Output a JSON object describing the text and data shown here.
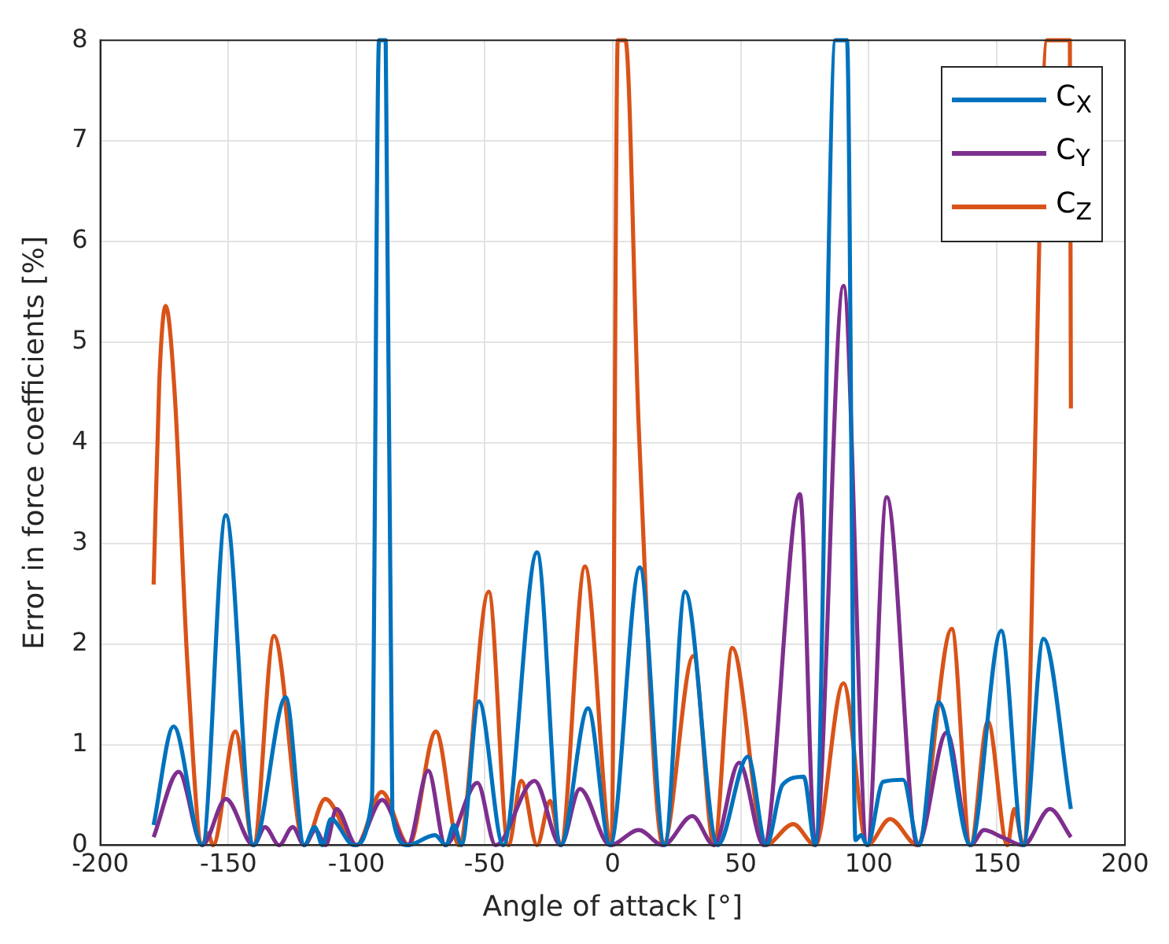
{
  "chart_data": {
    "type": "line",
    "xlabel": "Angle of attack [°]",
    "ylabel": "Error in force coefficients [%]",
    "xlim": [
      -200,
      200
    ],
    "xticks": [
      -200,
      -150,
      -100,
      -50,
      0,
      50,
      100,
      150,
      200
    ],
    "ylim": [
      0,
      8
    ],
    "yticks": [
      0,
      1,
      2,
      3,
      4,
      5,
      6,
      7,
      8
    ],
    "grid": true,
    "legend": "top right",
    "marker": "none",
    "line_style": "solid",
    "series": [
      {
        "name": "C$_{X}$",
        "color": "#0072bd",
        "x": [
          -179.2,
          -171.4,
          -160.2,
          -151,
          -140.2,
          -127.6,
          -120.4,
          -116.3,
          -113.3,
          -110,
          -101,
          -94,
          -91.2,
          -88.6,
          -86,
          -80,
          -69.4,
          -65,
          -62,
          -59,
          -52.2,
          -42.7,
          -29.5,
          -20.3,
          -9.6,
          -1,
          10.6,
          20.3,
          28.3,
          41,
          52.8,
          60,
          66.3,
          74.6,
          79.1,
          87,
          91.5,
          94.8,
          97,
          99.4,
          105.6,
          113.4,
          119.6,
          127.3,
          139.7,
          151.7,
          160.3,
          168.2,
          178.9
        ],
        "values": [
          0.2,
          1.18,
          0,
          3.28,
          0,
          1.47,
          0,
          0.18,
          0,
          0.26,
          0,
          0.45,
          8,
          8,
          0.3,
          0,
          0.1,
          0,
          0.2,
          0,
          1.43,
          0,
          2.91,
          0,
          1.36,
          0,
          2.76,
          0,
          2.52,
          0,
          0.88,
          0,
          0.6,
          0.68,
          0,
          8,
          8,
          0.05,
          0.1,
          0,
          0.63,
          0.65,
          0,
          1.42,
          0,
          2.13,
          0,
          2.05,
          0.36
        ]
      },
      {
        "name": "C$_{Y}$",
        "color": "#7e2f8e",
        "x": [
          -179.2,
          -169.4,
          -160.2,
          -151,
          -140.2,
          -135.7,
          -130.2,
          -124.9,
          -120.4,
          -116,
          -112,
          -107.8,
          -100,
          -90,
          -80,
          -72,
          -65.3,
          -52.8,
          -45.7,
          -30.5,
          -20.3,
          -12.8,
          -1,
          10.2,
          19.7,
          31.1,
          39.6,
          49.4,
          59,
          73.1,
          79.1,
          90.1,
          99.4,
          107,
          119,
          130.4,
          139.7,
          145,
          152,
          160.3,
          170.7,
          178.9
        ],
        "values": [
          0.08,
          0.73,
          0,
          0.46,
          0,
          0.18,
          0,
          0.18,
          0,
          0.15,
          0,
          0.36,
          0,
          0.45,
          0,
          0.74,
          0,
          0.62,
          0,
          0.64,
          0,
          0.56,
          0,
          0.15,
          0,
          0.29,
          0,
          0.82,
          0,
          3.49,
          0,
          5.56,
          0,
          3.46,
          0,
          1.12,
          0,
          0.15,
          0.08,
          0,
          0.36,
          0.08
        ]
      },
      {
        "name": "C$_{Z}$",
        "color": "#d95319",
        "x": [
          -179.2,
          -177,
          -174.5,
          -171,
          -166,
          -160.2,
          -158,
          -156,
          -147.3,
          -140.2,
          -132.2,
          -120.4,
          -112.2,
          -100,
          -90.2,
          -79.6,
          -69,
          -60,
          -48.4,
          -40.7,
          -35.6,
          -29.5,
          -24.4,
          -20.3,
          -10.8,
          -0.4,
          2,
          5,
          10.2,
          19.7,
          31.5,
          39.6,
          46.7,
          59.6,
          70.5,
          79.1,
          90.1,
          99.4,
          108.3,
          119,
          132.4,
          139.7,
          146.5,
          154.1,
          156.8,
          160.3,
          169.6,
          178.5,
          178.9
        ],
        "values": [
          2.59,
          4.6,
          5.36,
          4.5,
          1.8,
          0,
          0.12,
          0,
          1.13,
          0,
          2.08,
          0,
          0.46,
          0,
          0.53,
          0,
          1.13,
          0,
          2.52,
          0,
          0.64,
          0,
          0.44,
          0,
          2.77,
          0,
          8,
          8,
          4.15,
          0,
          1.88,
          0,
          1.96,
          0,
          0.21,
          0,
          1.61,
          0,
          0.26,
          0,
          2.15,
          0,
          1.23,
          0,
          0.36,
          0,
          8,
          8,
          4.34
        ]
      }
    ]
  }
}
